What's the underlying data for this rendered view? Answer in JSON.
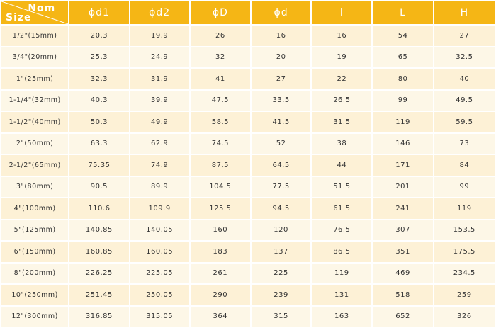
{
  "header": {
    "nom_label": "Nom",
    "size_label": "Size",
    "columns": [
      "ϕd1",
      "ϕd2",
      "ϕD",
      "ϕd",
      "l",
      "L",
      "H"
    ]
  },
  "rows": [
    [
      "1/2\"(15mm)",
      "20.3",
      "19.9",
      "26",
      "16",
      "16",
      "54",
      "27"
    ],
    [
      "3/4\"(20mm)",
      "25.3",
      "24.9",
      "32",
      "20",
      "19",
      "65",
      "32.5"
    ],
    [
      "1\"(25mm)",
      "32.3",
      "31.9",
      "41",
      "27",
      "22",
      "80",
      "40"
    ],
    [
      "1-1/4\"(32mm)",
      "40.3",
      "39.9",
      "47.5",
      "33.5",
      "26.5",
      "99",
      "49.5"
    ],
    [
      "1-1/2\"(40mm)",
      "50.3",
      "49.9",
      "58.5",
      "41.5",
      "31.5",
      "119",
      "59.5"
    ],
    [
      "2\"(50mm)",
      "63.3",
      "62.9",
      "74.5",
      "52",
      "38",
      "146",
      "73"
    ],
    [
      "2-1/2\"(65mm)",
      "75.35",
      "74.9",
      "87.5",
      "64.5",
      "44",
      "171",
      "84"
    ],
    [
      "3\"(80mm)",
      "90.5",
      "89.9",
      "104.5",
      "77.5",
      "51.5",
      "201",
      "99"
    ],
    [
      "4\"(100mm)",
      "110.6",
      "109.9",
      "125.5",
      "94.5",
      "61.5",
      "241",
      "119"
    ],
    [
      "5\"(125mm)",
      "140.85",
      "140.05",
      "160",
      "120",
      "76.5",
      "307",
      "153.5"
    ],
    [
      "6\"(150mm)",
      "160.85",
      "160.05",
      "183",
      "137",
      "86.5",
      "351",
      "175.5"
    ],
    [
      "8\"(200mm)",
      "226.25",
      "225.05",
      "261",
      "225",
      "119",
      "469",
      "234.5"
    ],
    [
      "10\"(250mm)",
      "251.45",
      "250.05",
      "290",
      "239",
      "131",
      "518",
      "259"
    ],
    [
      "12\"(300mm)",
      "316.85",
      "315.05",
      "364",
      "315",
      "163",
      "652",
      "326"
    ]
  ],
  "colors": {
    "header_bg": "#f5b615",
    "row_odd": "#fdf1d6",
    "row_even": "#fdf7e7"
  }
}
